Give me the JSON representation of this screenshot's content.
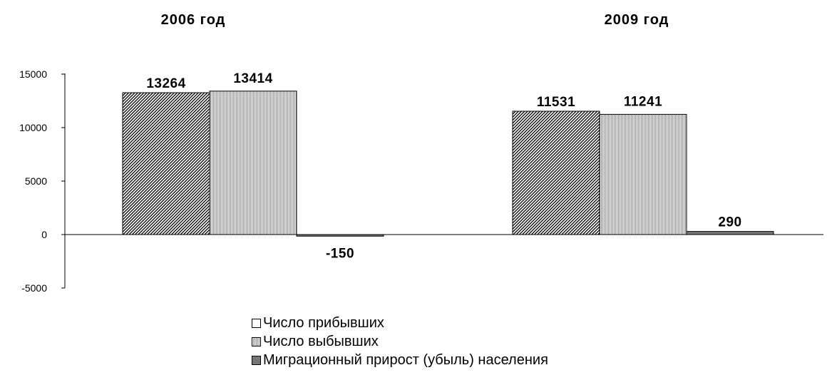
{
  "chart_data": {
    "type": "bar",
    "categories": [
      "2006 год",
      "2009 год"
    ],
    "series": [
      {
        "name": "Число прибывших",
        "values": [
          13264,
          11531
        ],
        "pattern": "diagonal-hatch",
        "color": "#000000"
      },
      {
        "name": "Число выбывших",
        "values": [
          13414,
          11241
        ],
        "pattern": "vertical-hatch",
        "color": "#8c8c8c"
      },
      {
        "name": "Миграционный прирост (убыль) населения",
        "values": [
          -150,
          290
        ],
        "pattern": "solid",
        "color": "#777777"
      }
    ],
    "data_labels": [
      [
        "13264",
        "11531"
      ],
      [
        "13414",
        "11241"
      ],
      [
        "-150",
        "290"
      ]
    ],
    "yticks": [
      "15000",
      "10000",
      "5000",
      "0",
      "-5000"
    ],
    "ytick_values": [
      15000,
      10000,
      5000,
      0,
      -5000
    ],
    "ylim": [
      -5000,
      15000
    ],
    "title": "",
    "xlabel": "",
    "ylabel": "",
    "legend_position": "bottom",
    "grid": false
  }
}
